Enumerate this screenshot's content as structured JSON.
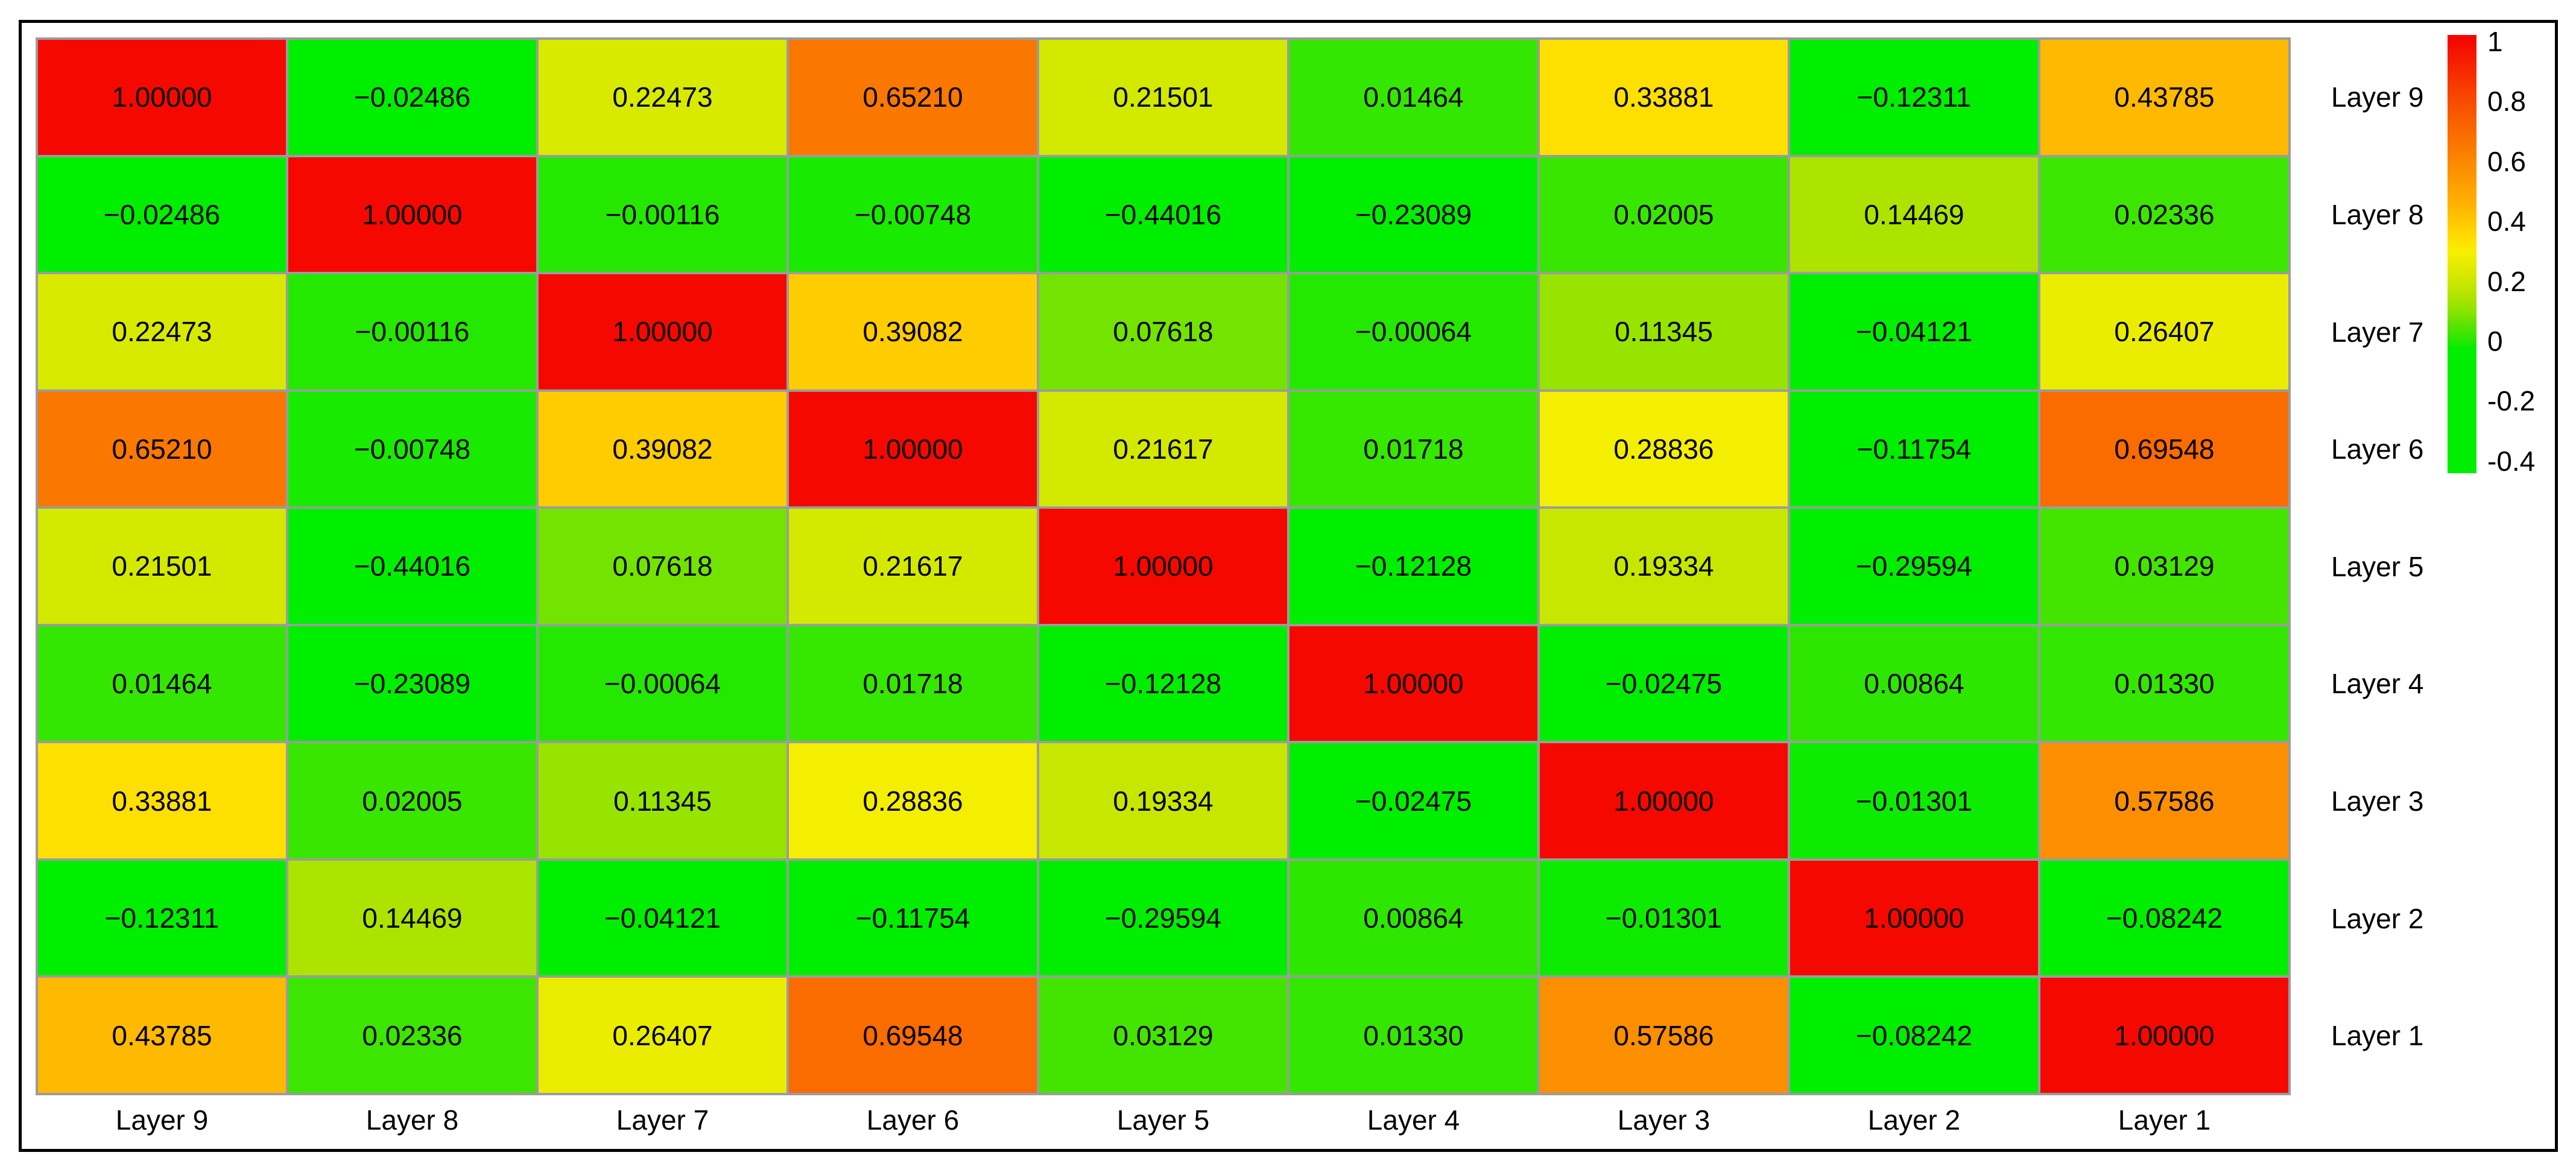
{
  "chart_data": {
    "type": "heatmap",
    "title": "",
    "x_categories": [
      "Layer 9",
      "Layer 8",
      "Layer 7",
      "Layer 6",
      "Layer 5",
      "Layer 4",
      "Layer 3",
      "Layer 2",
      "Layer 1"
    ],
    "y_categories": [
      "Layer 9",
      "Layer 8",
      "Layer 7",
      "Layer 6",
      "Layer 5",
      "Layer 4",
      "Layer 3",
      "Layer 2",
      "Layer 1"
    ],
    "values": [
      [
        1.0,
        -0.02486,
        0.22473,
        0.6521,
        0.21501,
        0.01464,
        0.33881,
        -0.12311,
        0.43785
      ],
      [
        -0.02486,
        1.0,
        -0.00116,
        -0.00748,
        -0.44016,
        -0.23089,
        0.02005,
        0.14469,
        0.02336
      ],
      [
        0.22473,
        -0.00116,
        1.0,
        0.39082,
        0.07618,
        -0.00064,
        0.11345,
        -0.04121,
        0.26407
      ],
      [
        0.6521,
        -0.00748,
        0.39082,
        1.0,
        0.21617,
        0.01718,
        0.28836,
        -0.11754,
        0.69548
      ],
      [
        0.21501,
        -0.44016,
        0.07618,
        0.21617,
        1.0,
        -0.12128,
        0.19334,
        -0.29594,
        0.03129
      ],
      [
        0.01464,
        -0.23089,
        -0.00064,
        0.01718,
        -0.12128,
        1.0,
        -0.02475,
        0.00864,
        0.0133
      ],
      [
        0.33881,
        0.02005,
        0.11345,
        0.28836,
        0.19334,
        -0.02475,
        1.0,
        -0.01301,
        0.57586
      ],
      [
        -0.12311,
        0.14469,
        -0.04121,
        -0.11754,
        -0.29594,
        0.00864,
        -0.01301,
        1.0,
        -0.08242
      ],
      [
        0.43785,
        0.02336,
        0.26407,
        0.69548,
        0.03129,
        0.0133,
        0.57586,
        -0.08242,
        1.0
      ]
    ],
    "value_decimals": 5,
    "legend_position": "right",
    "colorbar": {
      "tick_labels": [
        "1",
        "0.8",
        "0.6",
        "0.4",
        "0.2",
        "0",
        "-0.2",
        "-0.4"
      ],
      "tick_values": [
        1,
        0.8,
        0.6,
        0.4,
        0.2,
        0,
        -0.2,
        -0.4
      ],
      "value_range": [
        -0.44016,
        1.0
      ]
    },
    "colormap_anchors": [
      [
        -0.45,
        "#00EE00"
      ],
      [
        -0.02,
        "#00EE00"
      ],
      [
        0.0,
        "#26E800"
      ],
      [
        0.05,
        "#55E400"
      ],
      [
        0.1,
        "#8CE400"
      ],
      [
        0.15,
        "#B0E400"
      ],
      [
        0.2,
        "#CCE800"
      ],
      [
        0.25,
        "#E4EC00"
      ],
      [
        0.3,
        "#F9EE00"
      ],
      [
        0.35,
        "#FFDC00"
      ],
      [
        0.4,
        "#FFC800"
      ],
      [
        0.45,
        "#FFB400"
      ],
      [
        0.6,
        "#FB8800"
      ],
      [
        0.8,
        "#F84C00"
      ],
      [
        1.0,
        "#F50800"
      ]
    ],
    "grid_line_color": "#9C9C9C",
    "frame_color": "#000000",
    "background_color": "#FFFFFF",
    "text_color": "#000000",
    "negative_sign_glyph": "−"
  }
}
